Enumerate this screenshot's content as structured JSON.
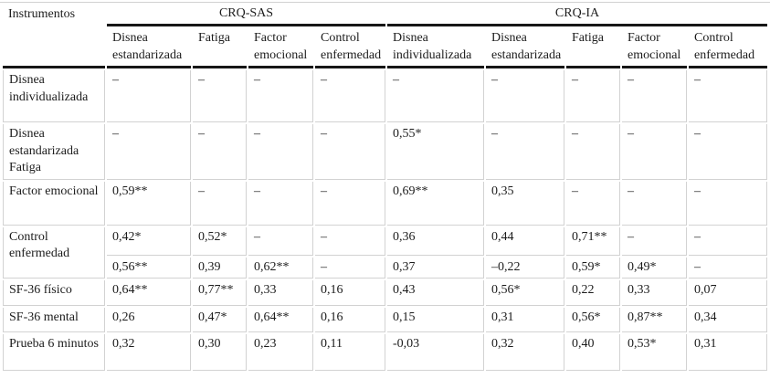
{
  "table": {
    "corner_label": "Instrumentos",
    "groups": [
      {
        "label": "CRQ-SAS",
        "colspan": 4
      },
      {
        "label": "CRQ-IA",
        "colspan": 5
      }
    ],
    "column_headers": [
      "Disnea estandarizada",
      "Fatiga",
      "Factor emocional",
      "Control enfermedad",
      "Disnea individualizada",
      "Disnea estandarizada",
      "Fatiga",
      "Factor emocional",
      "Control enfermedad"
    ],
    "rows": [
      {
        "label": "Disnea individualizada",
        "values": [
          "–",
          "–",
          "–",
          "–",
          "–",
          "–",
          "–",
          "–",
          "–"
        ]
      },
      {
        "label": "Disnea estandarizada Fatiga",
        "values": [
          "–",
          "–",
          "–",
          "–",
          "0,55*",
          "–",
          "–",
          "–",
          "–"
        ]
      },
      {
        "label": "Factor emocional",
        "values": [
          "0,59**",
          "–",
          "–",
          "–",
          "0,69**",
          "0,35",
          "–",
          "–",
          "–"
        ]
      },
      {
        "label": "Control enfermedad",
        "label_rowspan": 2,
        "values": [
          "0,42*",
          "0,52*",
          "–",
          "–",
          "0,36",
          "0,44",
          "0,71**",
          "–",
          "–"
        ]
      },
      {
        "label": null,
        "values": [
          "0,56**",
          "0,39",
          "0,62**",
          "–",
          "0,37",
          "–0,22",
          "0,59*",
          "0,49*",
          "–"
        ]
      },
      {
        "label": "SF-36 físico",
        "values": [
          "0,64**",
          "0,77**",
          "0,33",
          "0,16",
          "0,43",
          "0,56*",
          "0,22",
          "0,33",
          "0,07"
        ]
      },
      {
        "label": "SF-36 mental",
        "values": [
          "0,26",
          "0,47*",
          "0,64**",
          "0,16",
          "0,15",
          "0,31",
          "0,56*",
          "0,87**",
          "0,34"
        ]
      },
      {
        "label": "Prueba 6 minutos",
        "values": [
          "0,32",
          "0,30",
          "0,23",
          "0,11",
          "-0,03",
          "0,32",
          "0,40",
          "0,53*",
          "0,31"
        ]
      }
    ]
  }
}
